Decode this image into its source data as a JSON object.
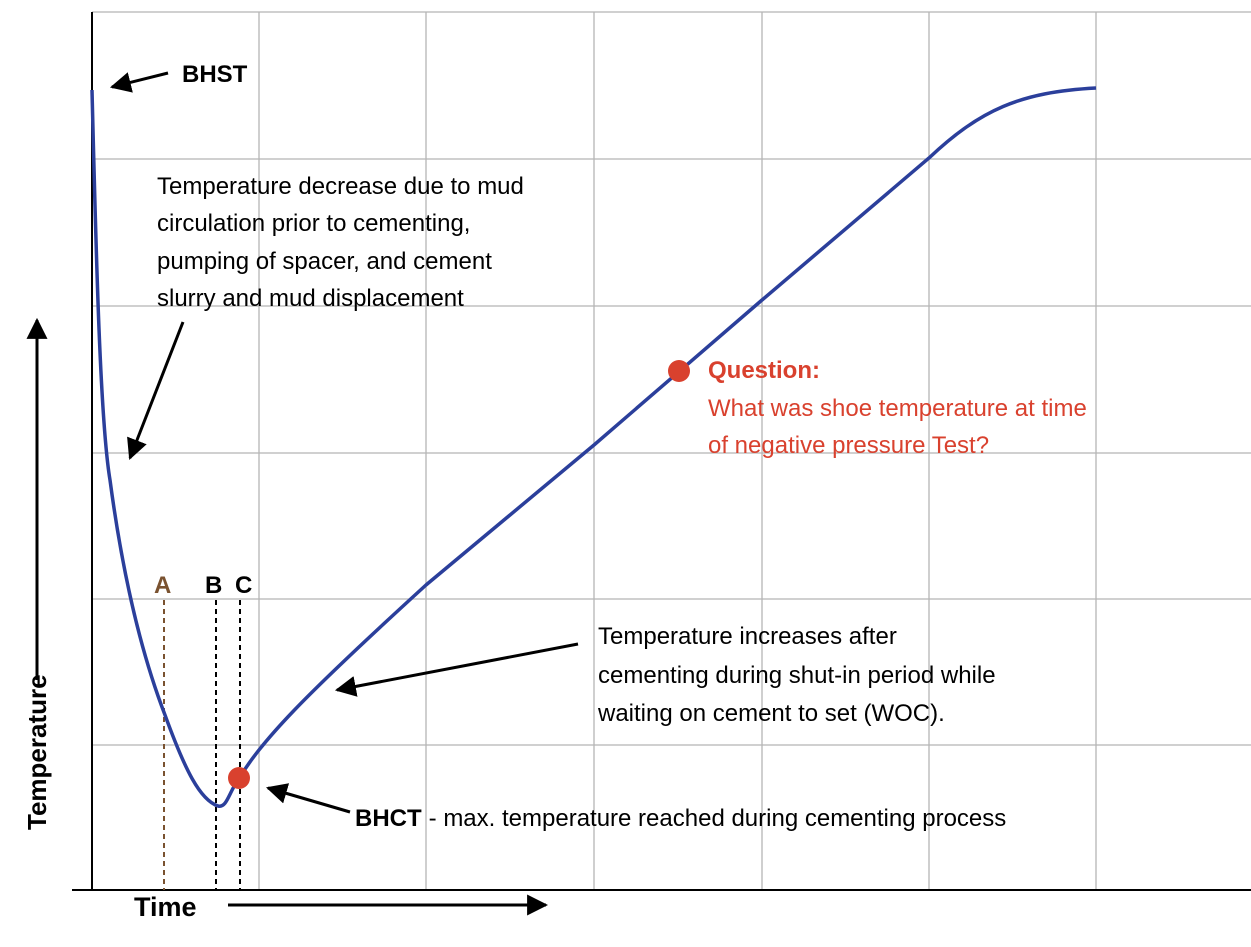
{
  "axes": {
    "y": "Temperature",
    "x": "Time"
  },
  "labels": {
    "bhst": "BHST",
    "decrease": [
      "Temperature decrease due to mud",
      "circulation prior to cementing,",
      "pumping of spacer, and cement",
      "slurry and mud displacement"
    ],
    "a": "A",
    "b": "B",
    "c": "C",
    "question_title": "Question:",
    "question": [
      "What was shoe temperature at time",
      "of negative pressure Test?"
    ],
    "increase": [
      "Temperature increases after",
      "cementing during shut-in period while",
      "waiting on cement to set (WOC)."
    ],
    "bhct": "BHCT",
    "bhct_desc": "- max. temperature reached during cementing process"
  }
}
